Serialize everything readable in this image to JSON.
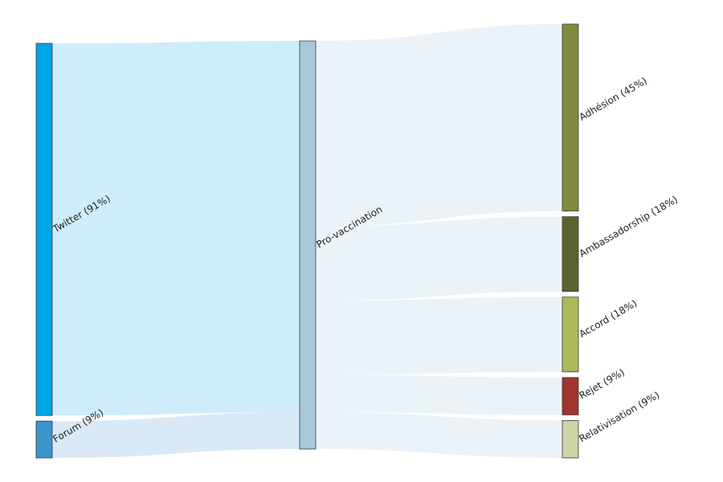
{
  "sankey": {
    "nodes": [
      {
        "id": "twitter",
        "label": "Twitter (91%)",
        "color": "#00a6e6",
        "column": 0,
        "value": 91
      },
      {
        "id": "forum",
        "label": "Forum (9%)",
        "color": "#3c95cc",
        "column": 0,
        "value": 9
      },
      {
        "id": "pro",
        "label": "Pro-vaccination",
        "color": "#a6c8d9",
        "column": 1,
        "value": 100
      },
      {
        "id": "adhesion",
        "label": "Adhésion (45%)",
        "color": "#828a3d",
        "column": 2,
        "value": 45
      },
      {
        "id": "ambassadorship",
        "label": "Ambassadorship (18%)",
        "color": "#5a622d",
        "column": 2,
        "value": 18
      },
      {
        "id": "accord",
        "label": "Accord (18%)",
        "color": "#adb95a",
        "column": 2,
        "value": 18
      },
      {
        "id": "rejet",
        "label": "Rejet (9%)",
        "color": "#a0362e",
        "column": 2,
        "value": 9
      },
      {
        "id": "relativisation",
        "label": "Relativisation (9%)",
        "color": "#cfd1a6",
        "column": 2,
        "value": 9
      }
    ],
    "links": [
      {
        "source": "twitter",
        "target": "pro",
        "value": 91,
        "color": "#cfecfb"
      },
      {
        "source": "forum",
        "target": "pro",
        "value": 9,
        "color": "#d9eaf6"
      },
      {
        "source": "pro",
        "target": "adhesion",
        "value": 45,
        "color": "#ebf3f8"
      },
      {
        "source": "pro",
        "target": "ambassadorship",
        "value": 18,
        "color": "#ebf3f8"
      },
      {
        "source": "pro",
        "target": "accord",
        "value": 18,
        "color": "#ebf3f8"
      },
      {
        "source": "pro",
        "target": "rejet",
        "value": 9,
        "color": "#ebf3f8"
      },
      {
        "source": "pro",
        "target": "relativisation",
        "value": 9,
        "color": "#ebf3f8"
      }
    ]
  }
}
